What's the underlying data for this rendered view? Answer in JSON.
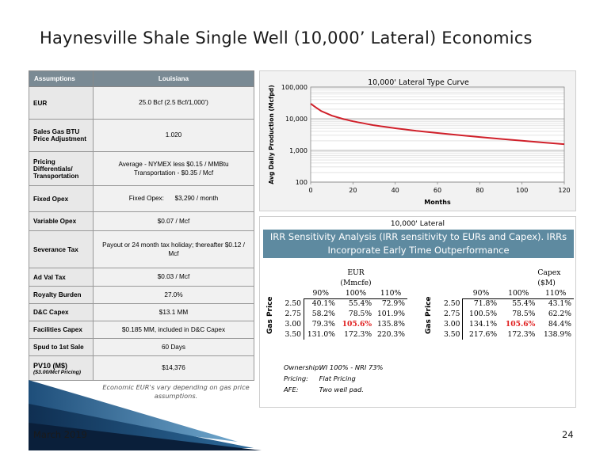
{
  "title": "Haynesville Shale Single Well (10,000’ Lateral) Economics",
  "assumptions": {
    "header": [
      "Assumptions",
      "Louisiana"
    ],
    "rows": [
      {
        "label": "EUR",
        "value": "25.0 Bcf (2.5 Bcf/1,000’)"
      },
      {
        "label": "Sales Gas BTU Price Adjustment",
        "value": "1.020"
      },
      {
        "label": "Pricing Differentials/ Transportation",
        "value": "Average - NYMEX less $0.15 / MMBtu Transportation - $0.35 / Mcf"
      },
      {
        "label": "Fixed Opex",
        "value": "Fixed Opex:      $3,290 / month"
      },
      {
        "label": "Variable Opex",
        "value": "$0.07 / Mcf"
      },
      {
        "label": "Severance Tax",
        "value": "Payout or 24 month tax holiday; thereafter $0.12 / Mcf"
      },
      {
        "label": "Ad Val Tax",
        "value": "$0.03 / Mcf"
      },
      {
        "label": "Royalty Burden",
        "value": "27.0%"
      },
      {
        "label": "D&C Capex",
        "value": "$13.1 MM"
      },
      {
        "label": "Facilities Capex",
        "value": "$0.185 MM, included in D&C Capex"
      },
      {
        "label": "Spud to 1st Sale",
        "value": "60 Days"
      },
      {
        "label": "PV10 (M$)",
        "sublabel": "($3.00/Mcf Pricing)",
        "value": "$14,376"
      }
    ]
  },
  "chart_data": {
    "type": "line",
    "title": "10,000' Lateral Type Curve",
    "xlabel": "Months",
    "ylabel": "Avg Daily Production (Mcfpd)",
    "y_scale": "log",
    "xlim": [
      0,
      120
    ],
    "ylim": [
      100,
      100000
    ],
    "x_ticks": [
      0,
      20,
      40,
      60,
      80,
      100,
      120
    ],
    "y_ticks": [
      100,
      1000,
      10000,
      100000
    ],
    "y_tick_labels": [
      "100",
      "1,000",
      "10,000",
      "100,000"
    ],
    "grid": true,
    "series": [
      {
        "color": "#d0202a",
        "x": [
          0,
          2,
          5,
          10,
          15,
          20,
          30,
          40,
          50,
          60,
          70,
          80,
          90,
          100,
          110,
          120
        ],
        "y": [
          30000,
          24000,
          17500,
          12500,
          10000,
          8300,
          6200,
          5000,
          4150,
          3550,
          3050,
          2650,
          2300,
          2020,
          1780,
          1580
        ]
      }
    ]
  },
  "irr": {
    "heading": "10,000' Lateral",
    "banner": "IRR Sensitivity Analysis (IRR sensitivity to EURs and Capex). IRRs Incorporate Early Time Outperformance",
    "gas_price_label": "Gas Price",
    "highlight_color": "#e02020",
    "eur": {
      "title_line1": "EUR",
      "title_line2": "(Mmcfe)",
      "cols": [
        "90%",
        "100%",
        "110%"
      ],
      "rows": [
        {
          "price": "2.50",
          "vals": [
            "40.1%",
            "55.4%",
            "72.9%"
          ]
        },
        {
          "price": "2.75",
          "vals": [
            "58.2%",
            "78.5%",
            "101.9%"
          ]
        },
        {
          "price": "3.00",
          "vals": [
            "79.3%",
            "105.6%",
            "135.8%"
          ]
        },
        {
          "price": "3.50",
          "vals": [
            "131.0%",
            "172.3%",
            "220.3%"
          ]
        }
      ]
    },
    "capex": {
      "title_line1": "Capex",
      "title_line2": "($M)",
      "cols": [
        "90%",
        "100%",
        "110%"
      ],
      "rows": [
        {
          "price": "2.50",
          "vals": [
            "71.8%",
            "55.4%",
            "43.1%"
          ]
        },
        {
          "price": "2.75",
          "vals": [
            "100.5%",
            "78.5%",
            "62.2%"
          ]
        },
        {
          "price": "3.00",
          "vals": [
            "134.1%",
            "105.6%",
            "84.4%"
          ]
        },
        {
          "price": "3.50",
          "vals": [
            "217.6%",
            "172.3%",
            "138.9%"
          ]
        }
      ]
    },
    "notes": [
      {
        "label": "Ownership:",
        "value": "WI 100% - NRI 73%"
      },
      {
        "label": "Pricing:",
        "value": "Flat Pricing"
      },
      {
        "label": "AFE:",
        "value": "Two well pad."
      }
    ]
  },
  "caption": "Economic EUR's vary depending on gas price assumptions.",
  "footer": {
    "date": "March 2019",
    "page": "24"
  }
}
